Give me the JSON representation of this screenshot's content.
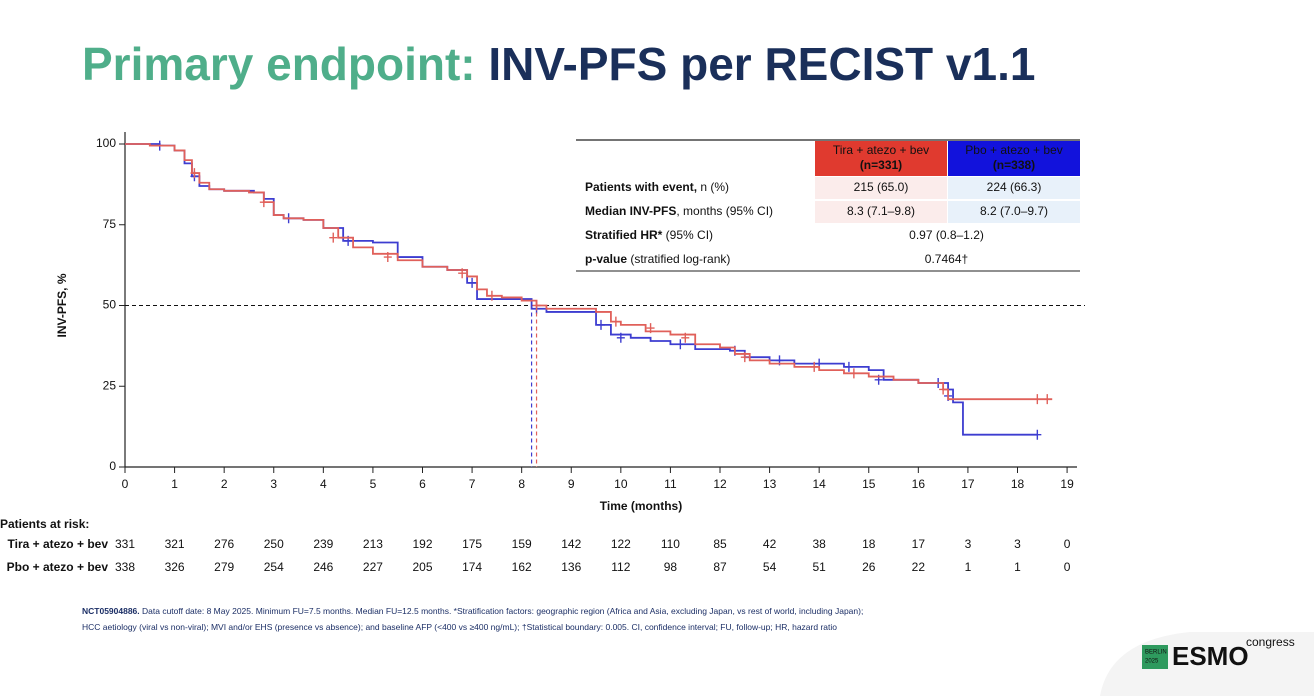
{
  "title": {
    "lead": "Primary endpoint:",
    "main": "INV-PFS per RECIST v1.1"
  },
  "chart_data": {
    "type": "line",
    "step": true,
    "xlabel": "Time (months)",
    "ylabel": "INV-PFS, %",
    "xlim": [
      0,
      19.2
    ],
    "ylim": [
      0,
      100
    ],
    "xticks": [
      0,
      1,
      2,
      3,
      4,
      5,
      6,
      7,
      8,
      9,
      10,
      11,
      12,
      13,
      14,
      15,
      16,
      17,
      18,
      19
    ],
    "yticks": [
      0,
      25,
      50,
      75,
      100
    ],
    "reference_y": 50,
    "series": [
      {
        "name": "Tira + atezo + bev",
        "color": "#e0605a",
        "median": 8.3,
        "x": [
          0,
          0.5,
          1,
          1.2,
          1.35,
          1.5,
          1.7,
          2,
          2.5,
          2.8,
          3,
          3.2,
          3.6,
          4,
          4.3,
          4.6,
          5,
          5.5,
          6,
          6.5,
          6.9,
          7.1,
          7.3,
          7.6,
          8,
          8.3,
          8.5,
          9.5,
          9.8,
          10,
          10.5,
          11,
          11.5,
          12,
          12.3,
          12.6,
          13,
          13.5,
          14,
          14.5,
          15,
          15.5,
          16,
          16.5,
          16.6,
          18.7
        ],
        "values": [
          100,
          99.5,
          98,
          95,
          91,
          88,
          86,
          85.5,
          85,
          82,
          78,
          77,
          76.5,
          74,
          71,
          68,
          66,
          64,
          62,
          61,
          59,
          55,
          53,
          52.5,
          51.5,
          50,
          49,
          48,
          45,
          44,
          42,
          41,
          38,
          37,
          35,
          33,
          32,
          31,
          30,
          29,
          28,
          27,
          26,
          24,
          21,
          21
        ],
        "censored_x": [
          1.4,
          2.8,
          4.2,
          5.3,
          6.8,
          7.4,
          8.3,
          9.9,
          10.6,
          11.3,
          12.5,
          13.9,
          14.7,
          16.5,
          18.4,
          18.6
        ],
        "censored_values": [
          91,
          82,
          71,
          65,
          60,
          53,
          50,
          45,
          43,
          40,
          34,
          31,
          29,
          24,
          21,
          21
        ]
      },
      {
        "name": "Pbo + atezo + bev",
        "color": "#3d3dd0",
        "median": 8.2,
        "x": [
          0,
          0.7,
          1,
          1.2,
          1.35,
          1.5,
          1.7,
          2,
          2.6,
          2.8,
          3,
          3.2,
          3.6,
          4,
          4.4,
          5,
          5.5,
          6,
          6.5,
          6.9,
          7.1,
          8.2,
          8.5,
          9,
          9.5,
          9.8,
          10.2,
          10.6,
          11,
          11.5,
          12.2,
          12.5,
          13,
          13.5,
          14,
          14.5,
          15,
          15.3,
          16,
          16.4,
          16.6,
          16.7,
          16.9,
          18.4
        ],
        "values": [
          100,
          99.5,
          98,
          94,
          90,
          87,
          86,
          85.5,
          85,
          83,
          78,
          77,
          76.5,
          74,
          70,
          69.5,
          65,
          62,
          61,
          57,
          52,
          49,
          48,
          48,
          44,
          41,
          40,
          39,
          38,
          36.5,
          36,
          34,
          33,
          32,
          32,
          31,
          30,
          27,
          26,
          26,
          24,
          20,
          10,
          10
        ],
        "censored_x": [
          0.7,
          1.4,
          3.3,
          4.5,
          7.0,
          8.3,
          9.6,
          10.0,
          11.2,
          12.3,
          13.2,
          14.0,
          14.6,
          15.2,
          16.4,
          16.6,
          18.4
        ],
        "censored_values": [
          99.5,
          90,
          77,
          70,
          57,
          49,
          44,
          40,
          38,
          36,
          33,
          32,
          31,
          27,
          26,
          22,
          10
        ]
      }
    ]
  },
  "table": {
    "columns": [
      "(n=331)",
      "(n=338)"
    ],
    "rows": [
      {
        "bold": "Patients with event,",
        "rest": " n (%)",
        "cells": [
          "215 (65.0)",
          "224 (66.3)"
        ]
      },
      {
        "bold": "Median INV-PFS",
        "rest": ", months (95% CI)",
        "cells": [
          "8.3 (7.1–9.8)",
          "8.2 (7.0–9.7)"
        ]
      },
      {
        "bold": "Stratified HR*",
        "rest": " (95% CI)",
        "cells": [
          "0.97 (0.8–1.2)"
        ]
      },
      {
        "bold": "p-value",
        "rest": " (stratified log-rank)",
        "cells": [
          "0.7464†"
        ]
      }
    ]
  },
  "risk_table": {
    "title": "Patients at risk:",
    "counts": [
      [
        331,
        321,
        276,
        250,
        239,
        213,
        192,
        175,
        159,
        142,
        122,
        110,
        85,
        42,
        38,
        18,
        17,
        3,
        3,
        0
      ],
      [
        338,
        326,
        279,
        254,
        246,
        227,
        205,
        174,
        162,
        136,
        112,
        98,
        87,
        54,
        51,
        26,
        22,
        1,
        1,
        0
      ]
    ]
  },
  "footnote": {
    "id": "NCT05904886.",
    "lines": [
      " Data cutoff date: 8 May 2025. Minimum FU=7.5 months. Median FU=12.5 months. *Stratification factors: geographic region (Africa and Asia, excluding Japan, vs rest of world, including Japan);",
      "HCC aetiology (viral vs non-viral); MVI and/or EHS (presence vs absence); and baseline AFP (<400 vs ≥400 ng/mL); †Statistical boundary: 0.005. CI, confidence interval; FU, follow-up; HR, hazard ratio"
    ]
  },
  "logo": {
    "city": "BERLIN",
    "year": "2025",
    "brand": "ESMO",
    "suffix": "congress"
  }
}
